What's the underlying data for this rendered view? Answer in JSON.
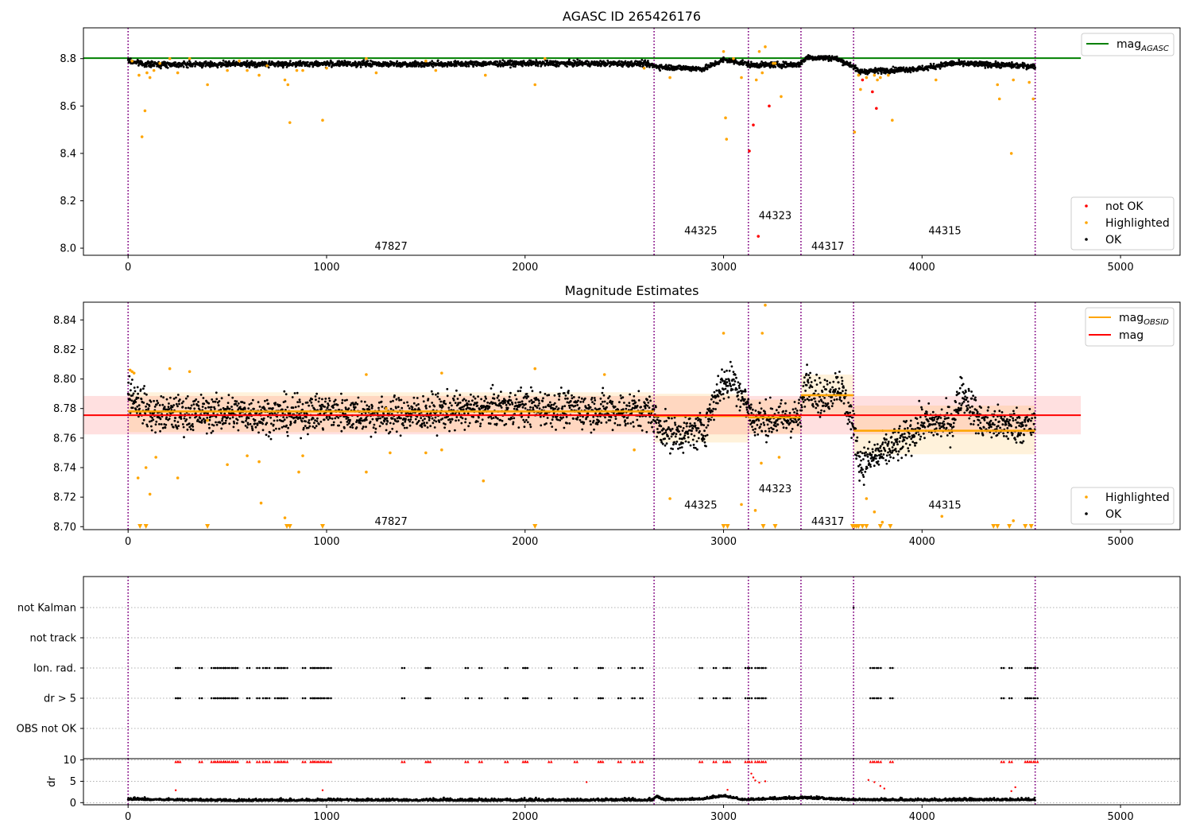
{
  "chart_data": [
    {
      "type": "scatter",
      "title": "AGASC ID 265426176",
      "xlim": [
        -225,
        5300
      ],
      "ylim": [
        7.97,
        8.93
      ],
      "xticks": [
        0,
        1000,
        2000,
        3000,
        4000,
        5000
      ],
      "yticks": [
        8.0,
        8.2,
        8.4,
        8.6,
        8.8
      ],
      "ytick_labels": [
        "8.0",
        "8.2",
        "8.4",
        "8.6",
        "8.8"
      ],
      "obsid_boundaries": [
        0,
        2650,
        3125,
        3390,
        3655,
        4570
      ],
      "obsid_labels": [
        {
          "text": "47827",
          "x": 1325,
          "y": 8.01
        },
        {
          "text": "44325",
          "x": 2885,
          "y": 8.075
        },
        {
          "text": "44323",
          "x": 3260,
          "y": 8.14
        },
        {
          "text": "44317",
          "x": 3525,
          "y": 8.01
        },
        {
          "text": "44315",
          "x": 4115,
          "y": 8.075
        }
      ],
      "hline": {
        "name": "mag",
        "subscript": "AGASC",
        "y": 8.802,
        "x_range": [
          -225,
          4800
        ],
        "color": "#008000"
      },
      "line_legend": [
        {
          "name": "mag",
          "subscript": "AGASC",
          "color": "#008000"
        }
      ],
      "point_legend": [
        {
          "name": "not OK",
          "color": "#ff0000"
        },
        {
          "name": "Highlighted",
          "color": "#ffa500"
        },
        {
          "name": "OK",
          "color": "#000000"
        }
      ],
      "ok_trend": [
        [
          0,
          8.79
        ],
        [
          100,
          8.776
        ],
        [
          500,
          8.776
        ],
        [
          1000,
          8.778
        ],
        [
          1500,
          8.777
        ],
        [
          2000,
          8.78
        ],
        [
          2600,
          8.779
        ],
        [
          2680,
          8.765
        ],
        [
          2900,
          8.757
        ],
        [
          3000,
          8.795
        ],
        [
          3100,
          8.782
        ],
        [
          3140,
          8.773
        ],
        [
          3380,
          8.775
        ],
        [
          3420,
          8.805
        ],
        [
          3560,
          8.802
        ],
        [
          3650,
          8.77
        ],
        [
          3680,
          8.745
        ],
        [
          4000,
          8.758
        ],
        [
          4150,
          8.78
        ],
        [
          4300,
          8.776
        ],
        [
          4570,
          8.768
        ]
      ],
      "highlighted": [
        [
          20,
          8.79
        ],
        [
          55,
          8.73
        ],
        [
          70,
          8.47
        ],
        [
          85,
          8.58
        ],
        [
          95,
          8.74
        ],
        [
          110,
          8.72
        ],
        [
          130,
          8.75
        ],
        [
          160,
          8.78
        ],
        [
          210,
          8.8
        ],
        [
          250,
          8.74
        ],
        [
          310,
          8.8
        ],
        [
          400,
          8.69
        ],
        [
          500,
          8.75
        ],
        [
          560,
          8.79
        ],
        [
          600,
          8.75
        ],
        [
          660,
          8.73
        ],
        [
          700,
          8.77
        ],
        [
          790,
          8.71
        ],
        [
          805,
          8.69
        ],
        [
          815,
          8.53
        ],
        [
          850,
          8.75
        ],
        [
          880,
          8.75
        ],
        [
          980,
          8.54
        ],
        [
          1000,
          8.76
        ],
        [
          1200,
          8.8
        ],
        [
          1250,
          8.74
        ],
        [
          1500,
          8.79
        ],
        [
          1550,
          8.75
        ],
        [
          1800,
          8.73
        ],
        [
          2050,
          8.69
        ],
        [
          2100,
          8.8
        ],
        [
          2600,
          8.76
        ],
        [
          2730,
          8.72
        ],
        [
          3000,
          8.83
        ],
        [
          3010,
          8.55
        ],
        [
          3015,
          8.46
        ],
        [
          3050,
          8.8
        ],
        [
          3090,
          8.72
        ],
        [
          3165,
          8.71
        ],
        [
          3180,
          8.83
        ],
        [
          3195,
          8.74
        ],
        [
          3210,
          8.85
        ],
        [
          3250,
          8.78
        ],
        [
          3260,
          8.78
        ],
        [
          3290,
          8.64
        ],
        [
          3660,
          8.49
        ],
        [
          3680,
          8.73
        ],
        [
          3690,
          8.67
        ],
        [
          3720,
          8.72
        ],
        [
          3760,
          8.73
        ],
        [
          3775,
          8.71
        ],
        [
          3790,
          8.72
        ],
        [
          3830,
          8.73
        ],
        [
          3850,
          8.54
        ],
        [
          4070,
          8.71
        ],
        [
          4380,
          8.69
        ],
        [
          4390,
          8.63
        ],
        [
          4450,
          8.4
        ],
        [
          4460,
          8.71
        ],
        [
          4540,
          8.7
        ],
        [
          4560,
          8.63
        ]
      ],
      "not_ok": [
        [
          3130,
          8.41
        ],
        [
          3150,
          8.52
        ],
        [
          3175,
          8.05
        ],
        [
          3230,
          8.6
        ],
        [
          3700,
          8.71
        ],
        [
          3750,
          8.66
        ],
        [
          3770,
          8.59
        ]
      ]
    },
    {
      "type": "scatter",
      "title": "Magnitude Estimates",
      "xlim": [
        -225,
        5300
      ],
      "ylim": [
        8.698,
        8.852
      ],
      "xticks": [
        0,
        1000,
        2000,
        3000,
        4000,
        5000
      ],
      "yticks": [
        8.7,
        8.72,
        8.74,
        8.76,
        8.78,
        8.8,
        8.82,
        8.84
      ],
      "ytick_labels": [
        "8.70",
        "8.72",
        "8.74",
        "8.76",
        "8.78",
        "8.80",
        "8.82",
        "8.84"
      ],
      "obsid_boundaries": [
        0,
        2650,
        3125,
        3390,
        3655,
        4570
      ],
      "obsid_labels": [
        {
          "text": "47827",
          "x": 1325,
          "y": 8.704
        },
        {
          "text": "44325",
          "x": 2885,
          "y": 8.715
        },
        {
          "text": "44323",
          "x": 3260,
          "y": 8.726
        },
        {
          "text": "44317",
          "x": 3525,
          "y": 8.704
        },
        {
          "text": "44315",
          "x": 4115,
          "y": 8.715
        }
      ],
      "mag": {
        "name": "mag",
        "y": 8.7755,
        "band": [
          8.7625,
          8.7885
        ],
        "x_range": [
          -225,
          4800
        ],
        "color": "#ff0000"
      },
      "obsid_mags": [
        {
          "x": [
            0,
            2650
          ],
          "y": 8.778,
          "band": [
            8.764,
            8.791
          ]
        },
        {
          "x": [
            2650,
            3125
          ],
          "y": 8.775,
          "band": [
            8.757,
            8.79
          ]
        },
        {
          "x": [
            3125,
            3390
          ],
          "y": 8.774,
          "band": [
            8.763,
            8.786
          ]
        },
        {
          "x": [
            3390,
            3655
          ],
          "y": 8.789,
          "band": [
            8.776,
            8.803
          ]
        },
        {
          "x": [
            3655,
            4570
          ],
          "y": 8.765,
          "band": [
            8.749,
            8.782
          ]
        }
      ],
      "line_legend": [
        {
          "name": "mag",
          "subscript": "OBSID",
          "color": "#ffa500"
        },
        {
          "name": "mag",
          "subscript": "",
          "color": "#ff0000"
        }
      ],
      "point_legend": [
        {
          "name": "Highlighted",
          "color": "#ffa500"
        },
        {
          "name": "OK",
          "color": "#000000"
        }
      ],
      "ok_trend": [
        [
          0,
          8.792
        ],
        [
          120,
          8.776
        ],
        [
          500,
          8.777
        ],
        [
          800,
          8.775
        ],
        [
          1000,
          8.778
        ],
        [
          1300,
          8.775
        ],
        [
          1500,
          8.777
        ],
        [
          2000,
          8.781
        ],
        [
          2300,
          8.779
        ],
        [
          2640,
          8.778
        ],
        [
          2670,
          8.768
        ],
        [
          2750,
          8.762
        ],
        [
          2900,
          8.765
        ],
        [
          2980,
          8.795
        ],
        [
          3050,
          8.8
        ],
        [
          3120,
          8.782
        ],
        [
          3150,
          8.772
        ],
        [
          3385,
          8.774
        ],
        [
          3420,
          8.8
        ],
        [
          3500,
          8.785
        ],
        [
          3580,
          8.798
        ],
        [
          3650,
          8.77
        ],
        [
          3690,
          8.742
        ],
        [
          3800,
          8.75
        ],
        [
          3900,
          8.757
        ],
        [
          4000,
          8.77
        ],
        [
          4150,
          8.77
        ],
        [
          4200,
          8.792
        ],
        [
          4300,
          8.77
        ],
        [
          4570,
          8.768
        ]
      ],
      "highlighted": [
        [
          10,
          8.806
        ],
        [
          20,
          8.805
        ],
        [
          30,
          8.804
        ],
        [
          50,
          8.733
        ],
        [
          90,
          8.74
        ],
        [
          110,
          8.722
        ],
        [
          140,
          8.747
        ],
        [
          210,
          8.807
        ],
        [
          250,
          8.733
        ],
        [
          310,
          8.805
        ],
        [
          400,
          8.772
        ],
        [
          500,
          8.742
        ],
        [
          600,
          8.748
        ],
        [
          660,
          8.744
        ],
        [
          670,
          8.716
        ],
        [
          790,
          8.706
        ],
        [
          860,
          8.737
        ],
        [
          880,
          8.748
        ],
        [
          1200,
          8.737
        ],
        [
          1200,
          8.803
        ],
        [
          1300,
          8.78
        ],
        [
          1320,
          8.75
        ],
        [
          1500,
          8.75
        ],
        [
          1580,
          8.752
        ],
        [
          1580,
          8.804
        ],
        [
          1790,
          8.731
        ],
        [
          2050,
          8.807
        ],
        [
          2400,
          8.803
        ],
        [
          2550,
          8.752
        ],
        [
          2730,
          8.719
        ],
        [
          3000,
          8.831
        ],
        [
          3090,
          8.715
        ],
        [
          3160,
          8.711
        ],
        [
          3190,
          8.743
        ],
        [
          3195,
          8.831
        ],
        [
          3210,
          8.85
        ],
        [
          3280,
          8.747
        ],
        [
          3720,
          8.719
        ],
        [
          3760,
          8.71
        ],
        [
          3800,
          8.703
        ],
        [
          4100,
          8.707
        ],
        [
          4460,
          8.704
        ]
      ],
      "below_range": [
        60,
        90,
        400,
        800,
        815,
        980,
        2050,
        3000,
        3020,
        3200,
        3260,
        3650,
        3660,
        3670,
        3680,
        3700,
        3720,
        3790,
        3840,
        4360,
        4380,
        4440,
        4520,
        4550
      ]
    },
    {
      "type": "scatter",
      "xlim": [
        -225,
        5300
      ],
      "categories": [
        "not Kalman",
        "not track",
        "Ion. rad.",
        "dr > 5",
        "OBS not OK"
      ],
      "obsid_boundaries": [
        0,
        2650,
        3125,
        3390,
        3655,
        4570
      ],
      "flag_times": [
        240,
        250,
        360,
        420,
        440,
        450,
        470,
        480,
        490,
        510,
        530,
        540,
        600,
        650,
        680,
        700,
        740,
        760,
        770,
        790,
        880,
        920,
        930,
        940,
        960,
        970,
        990,
        1010,
        1380,
        1500,
        1510,
        1700,
        1770,
        1900,
        1990,
        2000,
        2120,
        2250,
        2370,
        2380,
        2470,
        2540,
        2580,
        2880,
        2950,
        3000,
        3020,
        3110,
        3130,
        3160,
        3180,
        3200,
        3740,
        3760,
        3780,
        3840,
        4400,
        4440,
        4520,
        4530,
        4550,
        4570
      ],
      "not_kalman_times": [
        3655
      ]
    },
    {
      "type": "scatter",
      "ylabel": "dr",
      "xlim": [
        -225,
        5300
      ],
      "ylim": [
        -0.5,
        10.3
      ],
      "xticks": [
        0,
        1000,
        2000,
        3000,
        4000,
        5000
      ],
      "yticks": [
        0,
        5,
        10
      ],
      "ytick_labels": [
        "0",
        "5",
        "10"
      ],
      "obsid_boundaries": [
        0,
        2650,
        3125,
        3390,
        3655,
        4570
      ],
      "ok_trend": [
        [
          0,
          0.8
        ],
        [
          500,
          0.5
        ],
        [
          1000,
          0.6
        ],
        [
          2000,
          0.55
        ],
        [
          2640,
          0.6
        ],
        [
          2660,
          1.5
        ],
        [
          2700,
          0.6
        ],
        [
          2900,
          0.9
        ],
        [
          3000,
          1.6
        ],
        [
          3100,
          0.7
        ],
        [
          3400,
          1.1
        ],
        [
          3650,
          0.7
        ],
        [
          4000,
          0.6
        ],
        [
          4570,
          0.7
        ]
      ],
      "red_points": [
        [
          240,
          2.9
        ],
        [
          980,
          2.9
        ],
        [
          2310,
          4.8
        ],
        [
          3020,
          3.0
        ],
        [
          3140,
          6.8
        ],
        [
          3150,
          5.9
        ],
        [
          3160,
          5.2
        ],
        [
          3180,
          4.7
        ],
        [
          3210,
          5.0
        ],
        [
          3730,
          5.3
        ],
        [
          3760,
          4.8
        ],
        [
          3790,
          3.9
        ],
        [
          3810,
          3.3
        ],
        [
          4450,
          2.7
        ],
        [
          4470,
          3.6
        ]
      ]
    }
  ]
}
